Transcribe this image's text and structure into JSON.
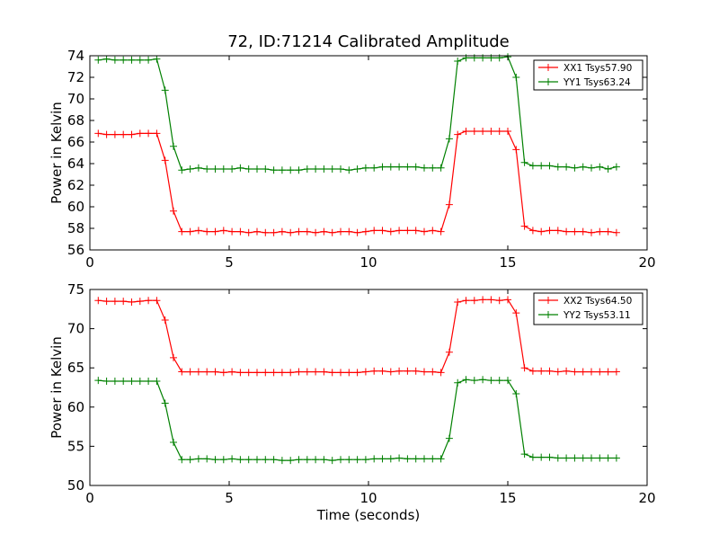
{
  "figure": {
    "title": "72, ID:71214 Calibrated Amplitude"
  },
  "chart_data": [
    {
      "type": "line",
      "title": "72, ID:71214 Calibrated Amplitude",
      "xlabel": "",
      "ylabel": "Power in Kelvin",
      "xlim": [
        0,
        20
      ],
      "ylim": [
        56,
        74
      ],
      "xticks": [
        0,
        5,
        10,
        15,
        20
      ],
      "yticks": [
        56,
        58,
        60,
        62,
        64,
        66,
        68,
        70,
        72,
        74
      ],
      "grid": false,
      "legend": "top-right",
      "x": [
        0.3,
        0.6,
        0.9,
        1.2,
        1.5,
        1.8,
        2.1,
        2.4,
        2.7,
        3.0,
        3.3,
        3.6,
        3.9,
        4.2,
        4.5,
        4.8,
        5.1,
        5.4,
        5.7,
        6.0,
        6.3,
        6.6,
        6.9,
        7.2,
        7.5,
        7.8,
        8.1,
        8.4,
        8.7,
        9.0,
        9.3,
        9.6,
        9.9,
        10.2,
        10.5,
        10.8,
        11.1,
        11.4,
        11.7,
        12.0,
        12.3,
        12.6,
        12.9,
        13.2,
        13.5,
        13.8,
        14.1,
        14.4,
        14.7,
        15.0,
        15.3,
        15.6,
        15.9,
        16.2,
        16.5,
        16.8,
        17.1,
        17.4,
        17.7,
        18.0,
        18.3,
        18.6,
        18.9
      ],
      "series": [
        {
          "name": "XX1 Tsys57.90",
          "color": "#ff0000",
          "values": [
            66.8,
            66.7,
            66.7,
            66.7,
            66.7,
            66.8,
            66.8,
            66.8,
            64.3,
            59.6,
            57.7,
            57.7,
            57.8,
            57.7,
            57.7,
            57.8,
            57.7,
            57.7,
            57.6,
            57.7,
            57.6,
            57.6,
            57.7,
            57.6,
            57.7,
            57.7,
            57.6,
            57.7,
            57.6,
            57.7,
            57.7,
            57.6,
            57.7,
            57.8,
            57.8,
            57.7,
            57.8,
            57.8,
            57.8,
            57.7,
            57.8,
            57.7,
            60.2,
            66.7,
            67.0,
            67.0,
            67.0,
            67.0,
            67.0,
            67.0,
            65.3,
            58.2,
            57.8,
            57.7,
            57.8,
            57.8,
            57.7,
            57.7,
            57.7,
            57.6,
            57.7,
            57.7,
            57.6
          ]
        },
        {
          "name": "YY1 Tsys63.24",
          "color": "#008000",
          "values": [
            73.6,
            73.7,
            73.6,
            73.6,
            73.6,
            73.6,
            73.6,
            73.7,
            70.8,
            65.6,
            63.4,
            63.5,
            63.6,
            63.5,
            63.5,
            63.5,
            63.5,
            63.6,
            63.5,
            63.5,
            63.5,
            63.4,
            63.4,
            63.4,
            63.4,
            63.5,
            63.5,
            63.5,
            63.5,
            63.5,
            63.4,
            63.5,
            63.6,
            63.6,
            63.7,
            63.7,
            63.7,
            63.7,
            63.7,
            63.6,
            63.6,
            63.6,
            66.3,
            73.5,
            73.8,
            73.8,
            73.8,
            73.8,
            73.8,
            73.9,
            72.0,
            64.1,
            63.8,
            63.8,
            63.8,
            63.7,
            63.7,
            63.6,
            63.7,
            63.6,
            63.7,
            63.5,
            63.7
          ]
        }
      ]
    },
    {
      "type": "line",
      "title": "",
      "xlabel": "Time (seconds)",
      "ylabel": "Power in Kelvin",
      "xlim": [
        0,
        20
      ],
      "ylim": [
        50,
        75
      ],
      "xticks": [
        0,
        5,
        10,
        15,
        20
      ],
      "yticks": [
        50,
        55,
        60,
        65,
        70,
        75
      ],
      "grid": false,
      "legend": "top-right",
      "x": [
        0.3,
        0.6,
        0.9,
        1.2,
        1.5,
        1.8,
        2.1,
        2.4,
        2.7,
        3.0,
        3.3,
        3.6,
        3.9,
        4.2,
        4.5,
        4.8,
        5.1,
        5.4,
        5.7,
        6.0,
        6.3,
        6.6,
        6.9,
        7.2,
        7.5,
        7.8,
        8.1,
        8.4,
        8.7,
        9.0,
        9.3,
        9.6,
        9.9,
        10.2,
        10.5,
        10.8,
        11.1,
        11.4,
        11.7,
        12.0,
        12.3,
        12.6,
        12.9,
        13.2,
        13.5,
        13.8,
        14.1,
        14.4,
        14.7,
        15.0,
        15.3,
        15.6,
        15.9,
        16.2,
        16.5,
        16.8,
        17.1,
        17.4,
        17.7,
        18.0,
        18.3,
        18.6,
        18.9
      ],
      "series": [
        {
          "name": "XX2 Tsys64.50",
          "color": "#ff0000",
          "values": [
            73.6,
            73.5,
            73.5,
            73.5,
            73.4,
            73.5,
            73.6,
            73.6,
            71.1,
            66.3,
            64.5,
            64.5,
            64.5,
            64.5,
            64.5,
            64.4,
            64.5,
            64.4,
            64.4,
            64.4,
            64.4,
            64.4,
            64.4,
            64.4,
            64.5,
            64.5,
            64.5,
            64.5,
            64.4,
            64.4,
            64.4,
            64.4,
            64.5,
            64.6,
            64.6,
            64.5,
            64.6,
            64.6,
            64.6,
            64.5,
            64.5,
            64.4,
            67.0,
            73.4,
            73.6,
            73.6,
            73.7,
            73.7,
            73.6,
            73.7,
            72.0,
            65.0,
            64.6,
            64.6,
            64.6,
            64.5,
            64.6,
            64.5,
            64.5,
            64.5,
            64.5,
            64.5,
            64.5
          ]
        },
        {
          "name": "YY2 Tsys53.11",
          "color": "#008000",
          "values": [
            63.4,
            63.3,
            63.3,
            63.3,
            63.3,
            63.3,
            63.3,
            63.3,
            60.5,
            55.5,
            53.3,
            53.3,
            53.4,
            53.4,
            53.3,
            53.3,
            53.4,
            53.3,
            53.3,
            53.3,
            53.3,
            53.3,
            53.2,
            53.2,
            53.3,
            53.3,
            53.3,
            53.3,
            53.2,
            53.3,
            53.3,
            53.3,
            53.3,
            53.4,
            53.4,
            53.4,
            53.5,
            53.4,
            53.4,
            53.4,
            53.4,
            53.4,
            56.0,
            63.1,
            63.5,
            63.4,
            63.5,
            63.4,
            63.4,
            63.4,
            61.7,
            54.0,
            53.6,
            53.6,
            53.6,
            53.5,
            53.5,
            53.5,
            53.5,
            53.5,
            53.5,
            53.5,
            53.5
          ]
        }
      ]
    }
  ]
}
